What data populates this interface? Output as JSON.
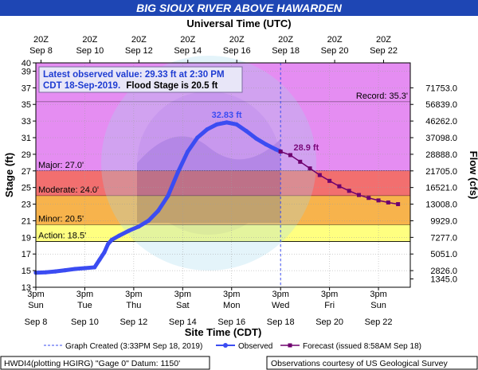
{
  "page": {
    "title": "BIG SIOUX RIVER ABOVE HAWARDEN",
    "top_axis_title": "Universal Time (UTC)",
    "bottom_axis_title": "Site Time (CDT)",
    "ylabel": "Stage (ft)",
    "y2label": "Flow (cfs)",
    "info_line1": "Latest observed value: 29.33 ft at 2:30 PM",
    "info_line2_a": "CDT 18-Sep-2019.",
    "info_line2_b": "Flood Stage is 20.5 ft",
    "legend_created": "Graph Created (3:33PM Sep 18, 2019)",
    "legend_observed": "Observed",
    "legend_forecast": "Forecast (issued 8:58AM Sep 18)",
    "footer_left": "HWDI4(plotting HGIRG) \"Gage 0\" Datum: 1150'",
    "footer_right": "Observations courtesy of US Geological Survey",
    "watermark": "NATIONAL OCEANIC AND ATMOSPHERIC ADMINISTRATION  U.S. DEPARTMENT OF COMMERCE",
    "colors": {
      "title_bg": "#1e46b4",
      "plot_bg": "#ffffff",
      "observed": "#3b4cf2",
      "forecast": "#6e006e",
      "peak_label": "#3b4cf2",
      "forecast_label": "#7a0a7a",
      "record_band": "#e58df2",
      "major_band": "#e58df2",
      "moderate_band": "#f26f6f",
      "minor_band": "#f7b34c",
      "action_band": "#ffff80"
    }
  },
  "chart_data": {
    "type": "line",
    "x_unit": "days after Sep 8, 2019 3pm CDT",
    "xlim": [
      0,
      15.3
    ],
    "ylim": [
      13,
      40
    ],
    "y_ticks": [
      13,
      15,
      17,
      19,
      21,
      23,
      25,
      27,
      29,
      31,
      33,
      35,
      37,
      39,
      40
    ],
    "bottom_ticks": [
      {
        "x": 0,
        "line1": "3pm",
        "line2": "Sun",
        "line3": "Sep 8"
      },
      {
        "x": 2,
        "line1": "3pm",
        "line2": "Tue",
        "line3": "Sep 10"
      },
      {
        "x": 4,
        "line1": "3pm",
        "line2": "Thu",
        "line3": "Sep 12"
      },
      {
        "x": 6,
        "line1": "3pm",
        "line2": "Sat",
        "line3": "Sep 14"
      },
      {
        "x": 8,
        "line1": "3pm",
        "line2": "Mon",
        "line3": "Sep 16"
      },
      {
        "x": 10,
        "line1": "3pm",
        "line2": "Wed",
        "line3": "Sep 18"
      },
      {
        "x": 12,
        "line1": "3pm",
        "line2": "Fri",
        "line3": "Sep 20"
      },
      {
        "x": 14,
        "line1": "3pm",
        "line2": "Sun",
        "line3": "Sep 22"
      }
    ],
    "top_ticks": [
      {
        "x": 0.21,
        "line1": "20Z",
        "line2": "Sep 8"
      },
      {
        "x": 2.21,
        "line1": "20Z",
        "line2": "Sep 10"
      },
      {
        "x": 4.21,
        "line1": "20Z",
        "line2": "Sep 12"
      },
      {
        "x": 6.21,
        "line1": "20Z",
        "line2": "Sep 14"
      },
      {
        "x": 8.21,
        "line1": "20Z",
        "line2": "Sep 16"
      },
      {
        "x": 10.21,
        "line1": "20Z",
        "line2": "Sep 18"
      },
      {
        "x": 12.21,
        "line1": "20Z",
        "line2": "Sep 20"
      },
      {
        "x": 14.21,
        "line1": "20Z",
        "line2": "Sep 22"
      }
    ],
    "flow_ticks": [
      {
        "stage": 14.0,
        "label": "1345.0"
      },
      {
        "stage": 15.0,
        "label": "2826.0"
      },
      {
        "stage": 17.0,
        "label": "5051.0"
      },
      {
        "stage": 19.0,
        "label": "7277.0"
      },
      {
        "stage": 21.0,
        "label": "9929.0"
      },
      {
        "stage": 23.0,
        "label": "13008.0"
      },
      {
        "stage": 25.0,
        "label": "16521.0"
      },
      {
        "stage": 27.0,
        "label": "21705.0"
      },
      {
        "stage": 29.0,
        "label": "28888.0"
      },
      {
        "stage": 31.0,
        "label": "37098.0"
      },
      {
        "stage": 33.0,
        "label": "46262.0"
      },
      {
        "stage": 35.0,
        "label": "56839.0"
      },
      {
        "stage": 37.0,
        "label": "71753.0"
      }
    ],
    "bands": [
      {
        "name": "Record",
        "from": 35.3,
        "to": 40,
        "color": "#e58df2",
        "label": "Record: 35.3'",
        "label_side": "right"
      },
      {
        "name": "Major",
        "from": 27.0,
        "to": 35.3,
        "color": "#e58df2",
        "label": "Major: 27.0'",
        "label_side": "left"
      },
      {
        "name": "Moderate",
        "from": 24.0,
        "to": 27.0,
        "color": "#f26f6f",
        "label": "Moderate: 24.0'",
        "label_side": "left"
      },
      {
        "name": "Minor",
        "from": 20.5,
        "to": 24.0,
        "color": "#f7b34c",
        "label": "Minor: 20.5'",
        "label_side": "left"
      },
      {
        "name": "Action",
        "from": 18.5,
        "to": 20.5,
        "color": "#ffff80",
        "label": "Action: 18.5'",
        "label_side": "left"
      }
    ],
    "now_x": 10.0,
    "series": [
      {
        "name": "Observed",
        "color": "#3b4cf2",
        "points": [
          [
            0.0,
            14.75
          ],
          [
            0.4,
            14.8
          ],
          [
            0.8,
            14.9
          ],
          [
            1.2,
            15.05
          ],
          [
            1.6,
            15.2
          ],
          [
            2.0,
            15.3
          ],
          [
            2.4,
            15.4
          ],
          [
            2.6,
            16.3
          ],
          [
            2.8,
            17.2
          ],
          [
            2.95,
            18.2
          ],
          [
            3.1,
            18.7
          ],
          [
            3.4,
            19.2
          ],
          [
            3.8,
            19.8
          ],
          [
            4.2,
            20.3
          ],
          [
            4.6,
            21.0
          ],
          [
            5.0,
            22.2
          ],
          [
            5.4,
            24.0
          ],
          [
            5.8,
            26.8
          ],
          [
            6.2,
            29.3
          ],
          [
            6.6,
            31.0
          ],
          [
            7.0,
            32.0
          ],
          [
            7.4,
            32.6
          ],
          [
            7.8,
            32.83
          ],
          [
            8.2,
            32.6
          ],
          [
            8.6,
            31.8
          ],
          [
            9.0,
            30.9
          ],
          [
            9.4,
            30.2
          ],
          [
            9.8,
            29.6
          ],
          [
            10.0,
            29.33
          ]
        ]
      },
      {
        "name": "Forecast",
        "color": "#6e006e",
        "points": [
          [
            10.0,
            29.33
          ],
          [
            10.4,
            28.9
          ],
          [
            10.8,
            28.1
          ],
          [
            11.2,
            27.3
          ],
          [
            11.6,
            26.5
          ],
          [
            12.0,
            25.8
          ],
          [
            12.4,
            25.15
          ],
          [
            12.8,
            24.6
          ],
          [
            13.2,
            24.1
          ],
          [
            13.6,
            23.75
          ],
          [
            14.0,
            23.45
          ],
          [
            14.4,
            23.2
          ],
          [
            14.8,
            23.0
          ]
        ]
      }
    ],
    "annotations": [
      {
        "text": "32.83 ft",
        "x": 7.8,
        "y": 32.83,
        "color": "#3b4cf2"
      },
      {
        "text": "28.9 ft",
        "x": 10.4,
        "y": 28.9,
        "color": "#7a0a7a"
      }
    ]
  }
}
